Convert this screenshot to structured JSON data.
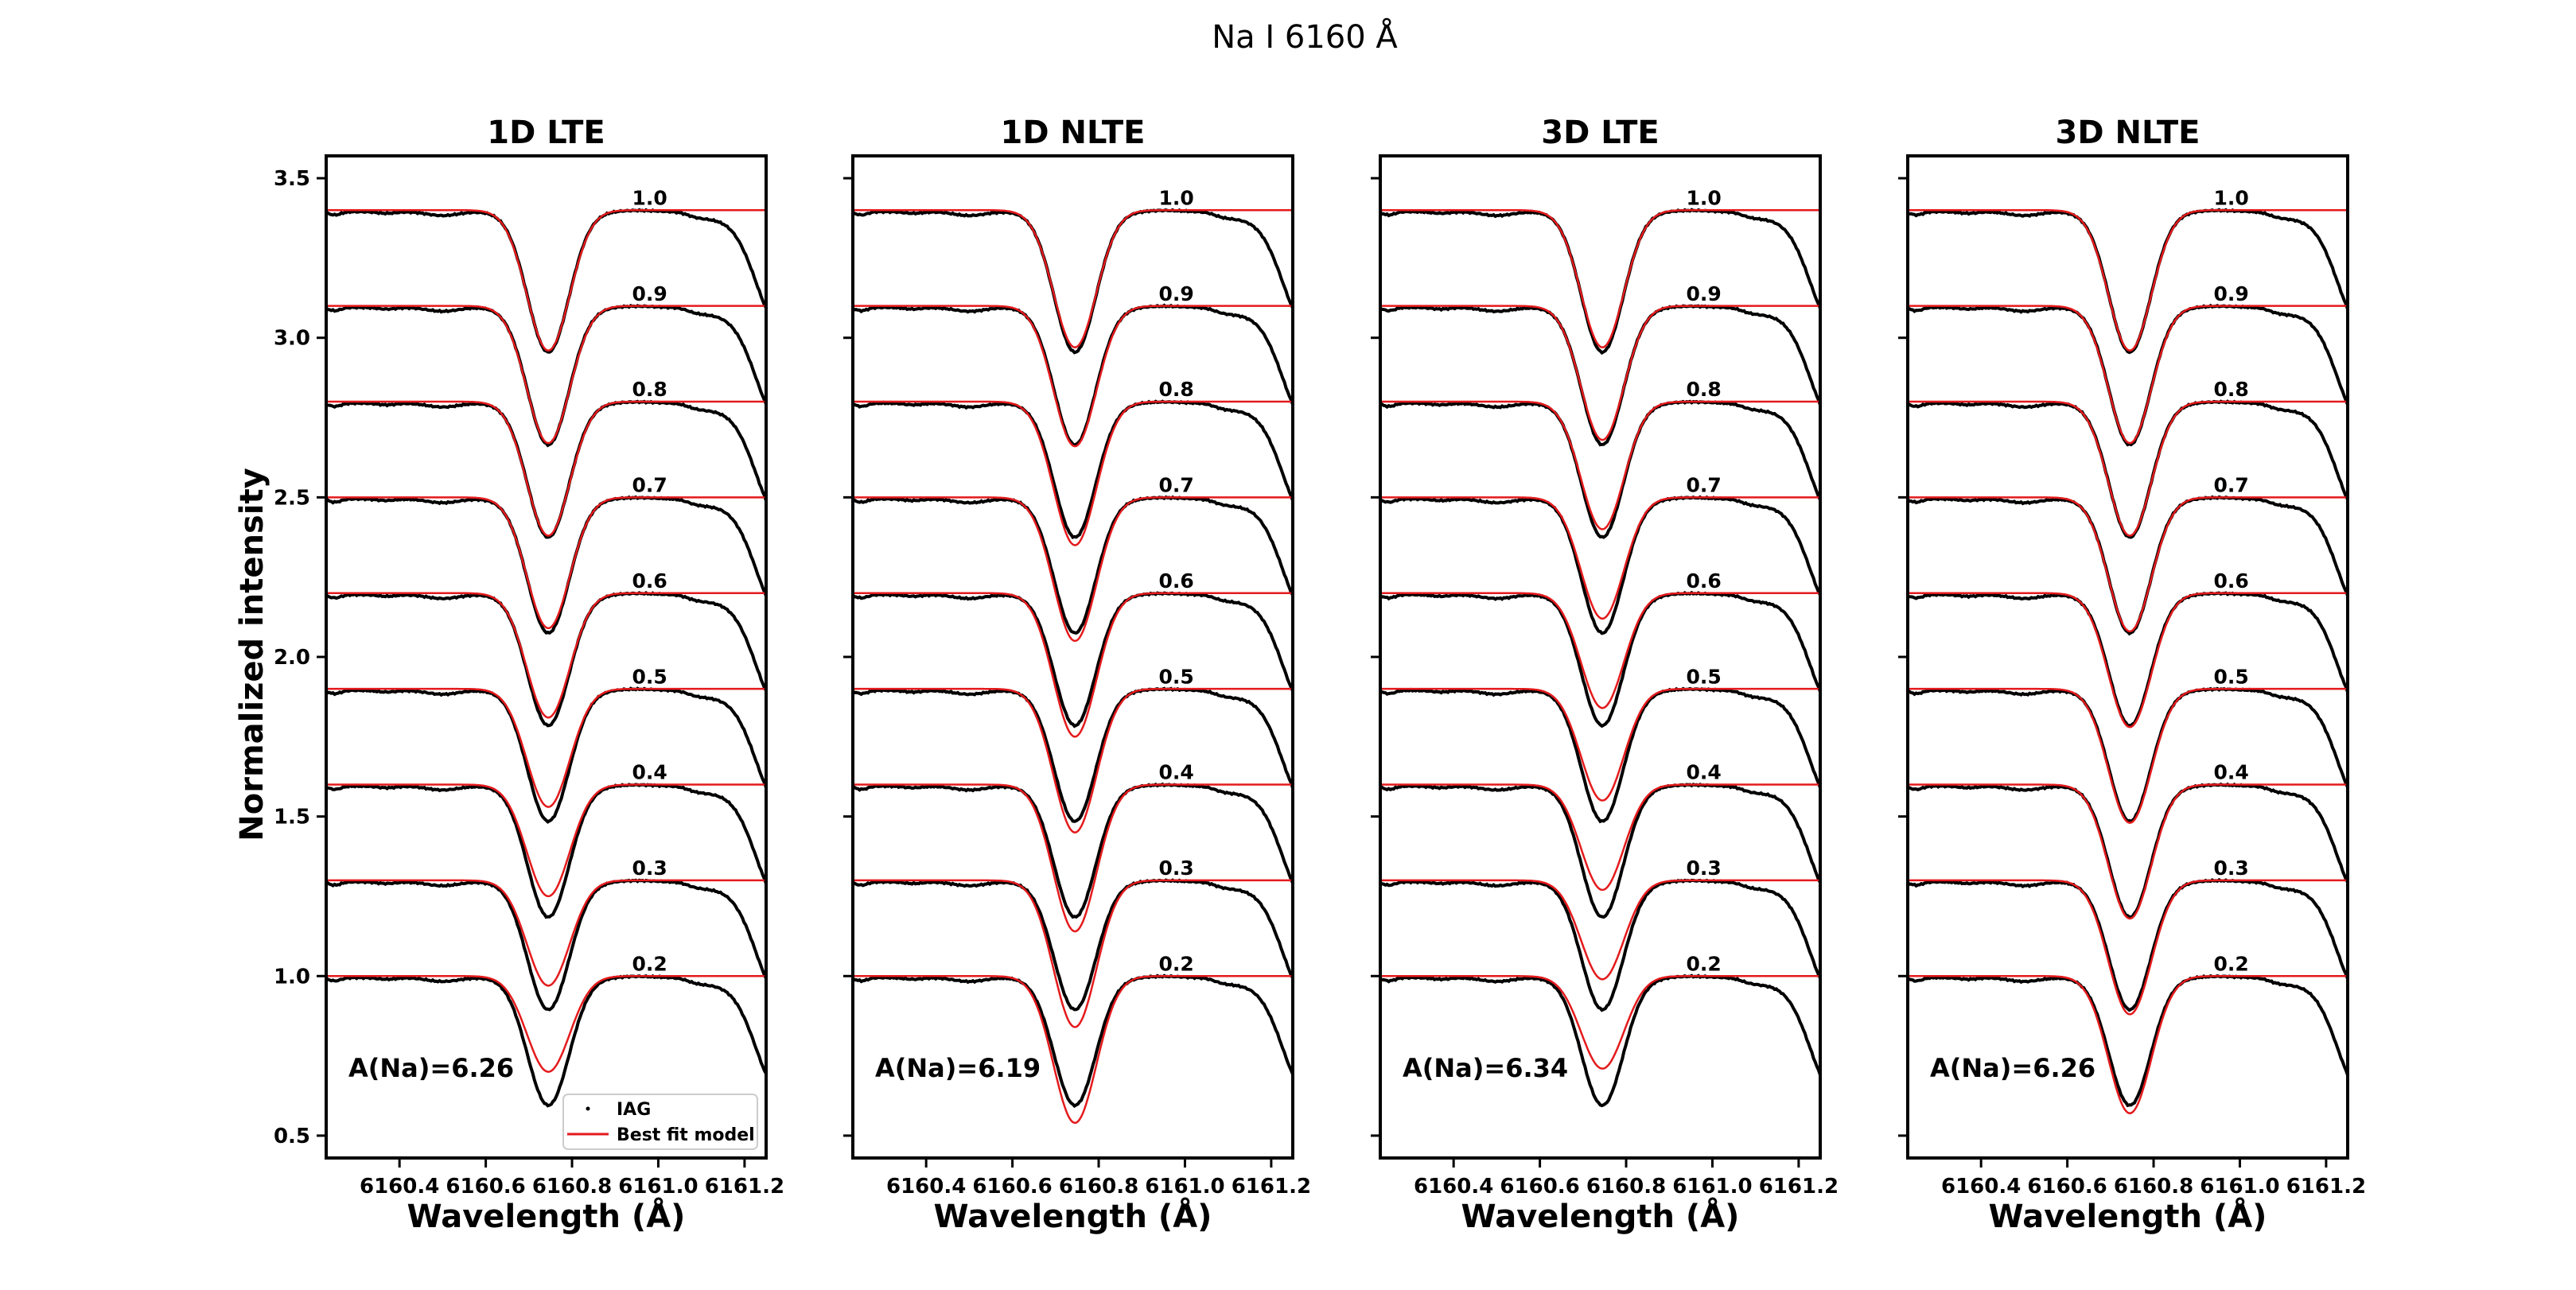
{
  "figure": {
    "title": "Na I 6160 Å"
  },
  "chart_data": {
    "type": "line",
    "title": "Na I 6160 Å",
    "xlabel": "Wavelength (Å)",
    "ylabel": "Normalized intensity",
    "xlim": [
      6160.23,
      6161.25
    ],
    "ylim": [
      0.43,
      3.57
    ],
    "xticks": [
      6160.4,
      6160.6,
      6160.8,
      6161.0,
      6161.2
    ],
    "xtick_labels": [
      "6160.4",
      "6160.6",
      "6160.8",
      "6161.0",
      "6161.2"
    ],
    "yticks": [
      0.5,
      1.0,
      1.5,
      2.0,
      2.5,
      3.0,
      3.5
    ],
    "ytick_labels": [
      "0.5",
      "1.0",
      "1.5",
      "2.0",
      "2.5",
      "3.0",
      "3.5"
    ],
    "grid": false,
    "legend_placement": "lower-right of first panel",
    "legend": [
      {
        "label": "IAG",
        "color": "#000000",
        "marker": "dot"
      },
      {
        "label": "Best fit model",
        "color": "#e41a1c",
        "marker": "line"
      }
    ],
    "line_center": 6160.745,
    "mu_values": [
      "1.0",
      "0.9",
      "0.8",
      "0.7",
      "0.6",
      "0.5",
      "0.4",
      "0.3",
      "0.2"
    ],
    "offsets": [
      3.4,
      3.1,
      2.8,
      2.5,
      2.2,
      1.9,
      1.6,
      1.3,
      1.0
    ],
    "observed_line_depth": [
      0.44,
      0.43,
      0.42,
      0.42,
      0.41,
      0.41,
      0.41,
      0.4,
      0.4
    ],
    "panels": [
      {
        "title": "1D LTE",
        "abundance": "A(Na)=6.26",
        "model_line_depth": [
          0.44,
          0.43,
          0.42,
          0.41,
          0.39,
          0.37,
          0.35,
          0.33,
          0.3
        ]
      },
      {
        "title": "1D NLTE",
        "abundance": "A(Na)=6.19",
        "model_line_depth": [
          0.43,
          0.44,
          0.45,
          0.45,
          0.45,
          0.45,
          0.46,
          0.46,
          0.46
        ]
      },
      {
        "title": "3D LTE",
        "abundance": "A(Na)=6.34",
        "model_line_depth": [
          0.43,
          0.42,
          0.4,
          0.38,
          0.36,
          0.35,
          0.33,
          0.31,
          0.29
        ]
      },
      {
        "title": "3D NLTE",
        "abundance": "A(Na)=6.26",
        "model_line_depth": [
          0.44,
          0.43,
          0.42,
          0.42,
          0.42,
          0.42,
          0.42,
          0.42,
          0.43
        ]
      }
    ]
  }
}
